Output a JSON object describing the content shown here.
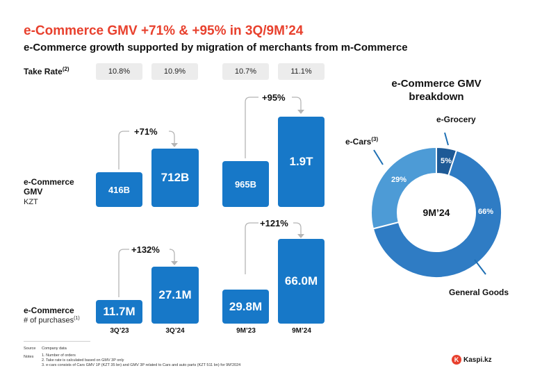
{
  "header": {
    "title": "e-Commerce GMV +71% & +95% in 3Q/9M’24",
    "subtitle": "e-Commerce growth supported by migration of merchants from m-Commerce"
  },
  "take_rate": {
    "label": "Take Rate",
    "note": "(2)",
    "values": [
      "10.8%",
      "10.9%",
      "10.7%",
      "11.1%"
    ]
  },
  "rows": {
    "gmv": {
      "label_line1": "e-Commerce",
      "label_line2": "GMV",
      "unit": "KZT"
    },
    "purchases": {
      "label": "e-Commerce",
      "sub": "# of purchases",
      "note": "(1)"
    }
  },
  "periods": [
    "3Q’23",
    "3Q’24",
    "9M’23",
    "9M’24"
  ],
  "growth": {
    "gmv_3q": "+71%",
    "gmv_9m": "+95%",
    "purchases_3q": "+132%",
    "purchases_9m": "+121%"
  },
  "chart_data": [
    {
      "type": "bar",
      "categories": [
        "3Q’23",
        "3Q’24",
        "9M’23",
        "9M’24"
      ],
      "values": [
        416,
        712,
        965,
        1900
      ],
      "labels": [
        "416B",
        "712B",
        "965B",
        "1.9T"
      ],
      "ylabel": "KZT"
    },
    {
      "type": "bar",
      "categories": [
        "3Q’23",
        "3Q’24",
        "9M’23",
        "9M’24"
      ],
      "values": [
        11.7,
        27.1,
        29.8,
        66.0
      ],
      "labels": [
        "11.7M",
        "27.1M",
        "29.8M",
        "66.0M"
      ]
    },
    {
      "type": "pie",
      "title": "e-Commerce GMV breakdown",
      "center_label": "9M’24",
      "categories": [
        "e-Grocery",
        "General Goods",
        "e-Cars"
      ],
      "values": [
        5,
        66,
        29
      ],
      "labels": [
        "5%",
        "66%",
        "29%"
      ],
      "colors": [
        "#1e5a96",
        "#2f7cc4",
        "#4d9bd6"
      ],
      "cars_note": "(3)"
    }
  ],
  "footer": {
    "source_label": "Source",
    "source_text": "Company data",
    "notes_label": "Notes",
    "notes": [
      "1. Number of orders",
      "2. Take rate is calculated based on GMV 3P only",
      "3. e-cars consists of Cars GMV 1P (KZT 35 bn) and GMV 3P related to Cars and auto parts (KZT 511 bn) for 9M’2024"
    ],
    "brand": "Kaspi.kz"
  },
  "colors": {
    "title": "#e8412e",
    "bar": "#1778c8"
  }
}
